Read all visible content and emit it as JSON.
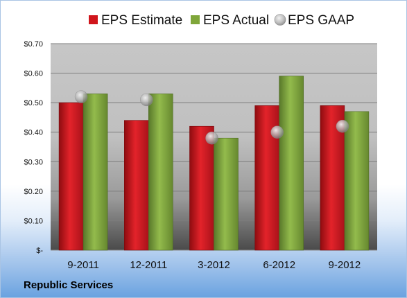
{
  "company": "Republic Services",
  "chart_data": {
    "type": "bar",
    "categories": [
      "9-2011",
      "12-2011",
      "3-2012",
      "6-2012",
      "9-2012"
    ],
    "series": [
      {
        "name": "EPS Estimate",
        "kind": "bar",
        "color": "#d0151b",
        "values": [
          0.5,
          0.44,
          0.42,
          0.49,
          0.49
        ]
      },
      {
        "name": "EPS Actual",
        "kind": "bar",
        "color": "#7fa63a",
        "values": [
          0.53,
          0.53,
          0.38,
          0.59,
          0.47
        ]
      },
      {
        "name": "EPS GAAP",
        "kind": "marker",
        "color": "#a8a8a8",
        "values": [
          0.52,
          0.51,
          0.38,
          0.4,
          0.42
        ]
      }
    ],
    "ylim": [
      0,
      0.7
    ],
    "yticks": [
      0,
      0.1,
      0.2,
      0.3,
      0.4,
      0.5,
      0.6,
      0.7
    ],
    "ytick_labels": [
      "$-",
      "$0.10",
      "$0.20",
      "$0.30",
      "$0.40",
      "$0.50",
      "$0.60",
      "$0.70"
    ],
    "grid": true,
    "legend_position": "top"
  }
}
